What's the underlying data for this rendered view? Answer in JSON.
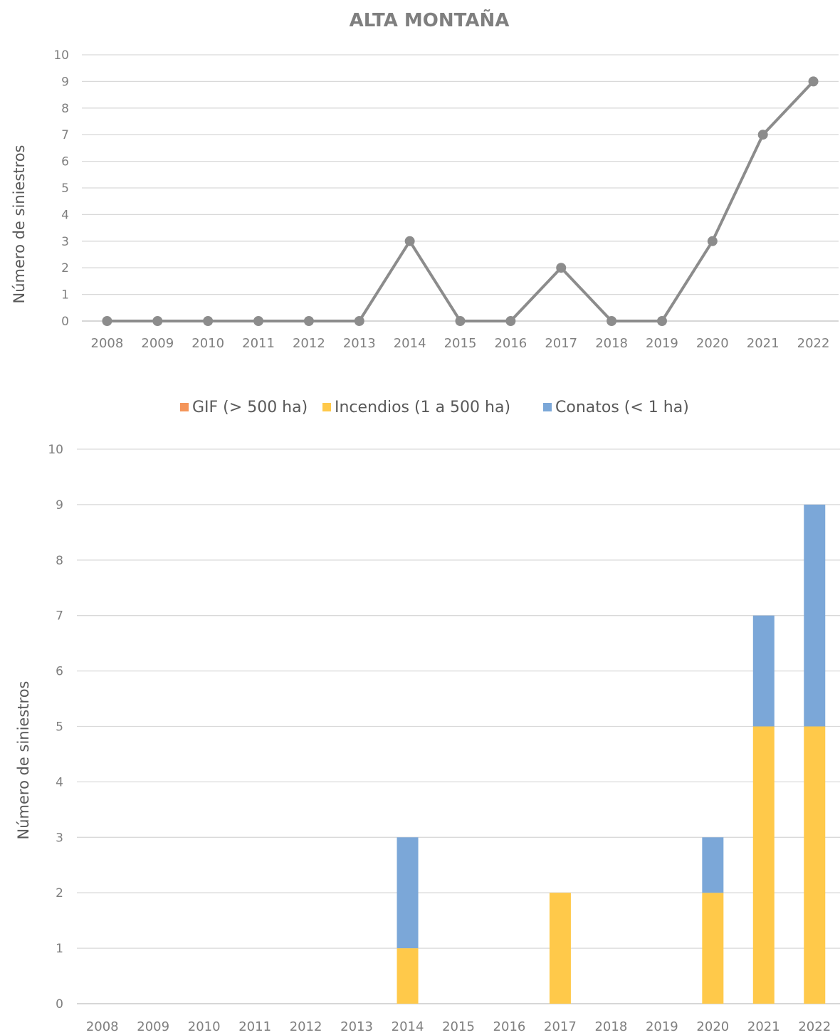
{
  "chart_data": [
    {
      "type": "line",
      "title": "ALTA MONTAÑA",
      "ylabel": "Número de siniestros",
      "xlabel": "",
      "categories": [
        "2008",
        "2009",
        "2010",
        "2011",
        "2012",
        "2013",
        "2014",
        "2015",
        "2016",
        "2017",
        "2018",
        "2019",
        "2020",
        "2021",
        "2022"
      ],
      "series": [
        {
          "values": [
            0,
            0,
            0,
            0,
            0,
            0,
            3,
            0,
            0,
            2,
            0,
            0,
            3,
            7,
            9
          ],
          "color": "#8c8c8c"
        }
      ],
      "ylim": [
        0,
        10
      ],
      "yticks": [
        "0",
        "1",
        "2",
        "3",
        "4",
        "5",
        "6",
        "7",
        "8",
        "9",
        "10"
      ],
      "grid": true
    },
    {
      "type": "bar",
      "stacked": true,
      "ylabel": "Número de siniestros",
      "xlabel": "",
      "categories": [
        "2008",
        "2009",
        "2010",
        "2011",
        "2012",
        "2013",
        "2014",
        "2015",
        "2016",
        "2017",
        "2018",
        "2019",
        "2020",
        "2021",
        "2022"
      ],
      "series": [
        {
          "name": "GIF (> 500 ha)",
          "values": [
            0,
            0,
            0,
            0,
            0,
            0,
            0,
            0,
            0,
            0,
            0,
            0,
            0,
            0,
            0
          ],
          "color": "#f4955a"
        },
        {
          "name": "Incendios (1 a 500 ha)",
          "values": [
            0,
            0,
            0,
            0,
            0,
            0,
            1,
            0,
            0,
            2,
            0,
            0,
            2,
            5,
            5
          ],
          "color": "#ffc94a"
        },
        {
          "name": "Conatos (< 1 ha)",
          "values": [
            0,
            0,
            0,
            0,
            0,
            0,
            2,
            0,
            0,
            0,
            0,
            0,
            1,
            2,
            4
          ],
          "color": "#7ba7d8"
        }
      ],
      "ylim": [
        0,
        10
      ],
      "yticks": [
        "0",
        "1",
        "2",
        "3",
        "4",
        "5",
        "6",
        "7",
        "8",
        "9",
        "10"
      ],
      "grid": true,
      "legend": "top"
    }
  ]
}
